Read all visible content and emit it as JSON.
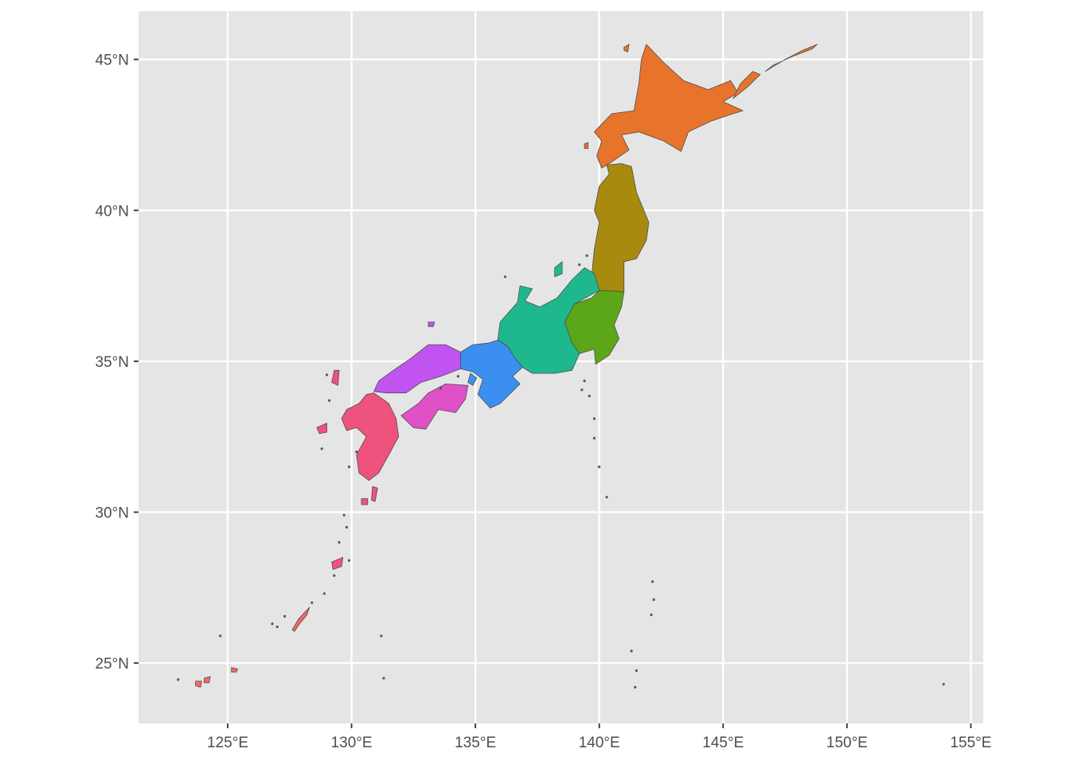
{
  "map": {
    "title": "",
    "x_axis": {
      "ticks": [
        {
          "value": 125,
          "label": "125°E"
        },
        {
          "value": 130,
          "label": "130°E"
        },
        {
          "value": 135,
          "label": "135°E"
        },
        {
          "value": 140,
          "label": "140°E"
        },
        {
          "value": 145,
          "label": "145°E"
        },
        {
          "value": 150,
          "label": "150°E"
        },
        {
          "value": 155,
          "label": "155°E"
        }
      ],
      "range": [
        121.4,
        155.5
      ]
    },
    "y_axis": {
      "ticks": [
        {
          "value": 25,
          "label": "25°N"
        },
        {
          "value": 30,
          "label": "30°N"
        },
        {
          "value": 35,
          "label": "35°N"
        },
        {
          "value": 40,
          "label": "40°N"
        },
        {
          "value": 45,
          "label": "45°N"
        }
      ],
      "range": [
        23.0,
        46.6
      ]
    },
    "panel_background": "#e5e5e5",
    "grid": true,
    "legend": "none",
    "fill_palette": "hue by region, municipalities outlined in dark grey",
    "regions": [
      {
        "name": "Hokkaido",
        "color": "#e8732b"
      },
      {
        "name": "Tohoku",
        "color": "#a88a0e"
      },
      {
        "name": "Kanto",
        "color": "#5ca619"
      },
      {
        "name": "Chubu",
        "color": "#1fb88e"
      },
      {
        "name": "Kinki",
        "color": "#3b8ff0"
      },
      {
        "name": "Chugoku",
        "color": "#c154f0"
      },
      {
        "name": "Shikoku",
        "color": "#e051c8"
      },
      {
        "name": "Kyushu",
        "color": "#f0527e"
      },
      {
        "name": "Okinawa",
        "color": "#f46a63"
      }
    ]
  }
}
